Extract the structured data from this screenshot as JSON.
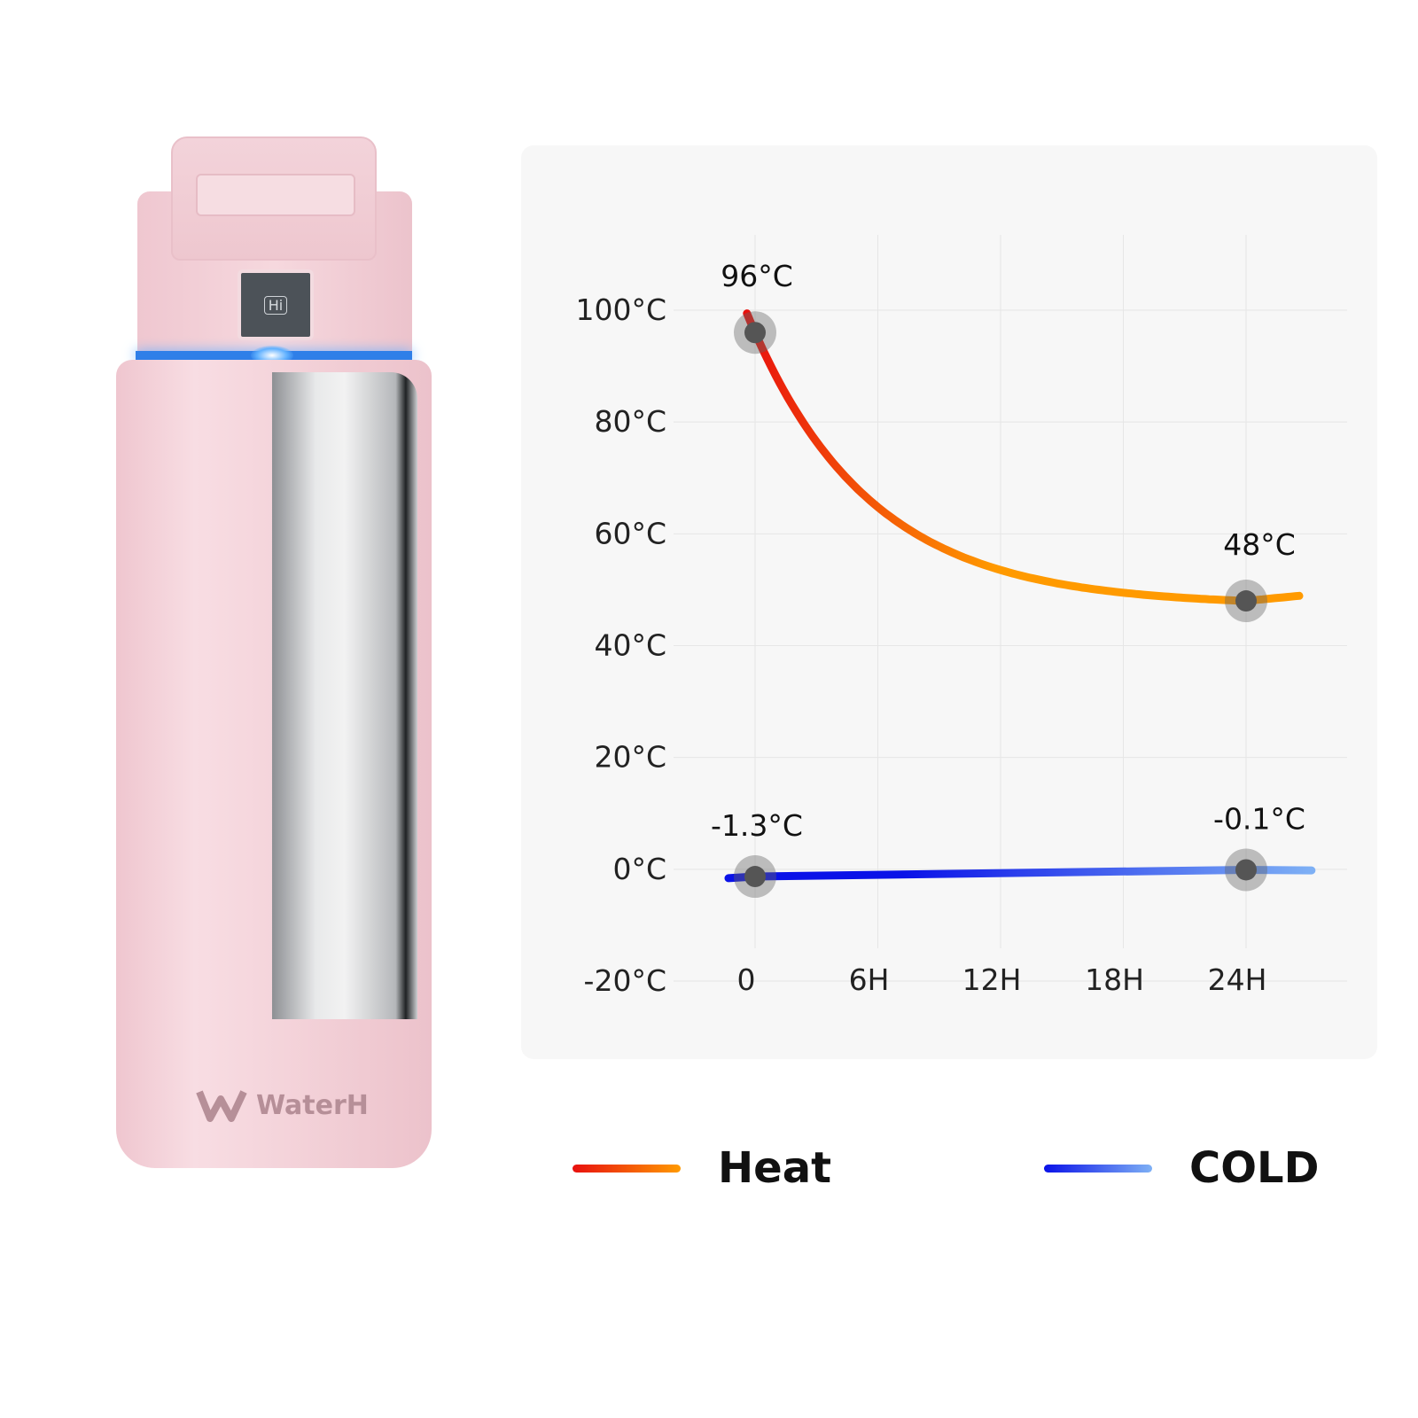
{
  "product": {
    "brand": "WaterH",
    "screen_text": "Hi"
  },
  "chart_data": {
    "type": "line",
    "title": "",
    "xlabel": "",
    "ylabel": "",
    "x_ticks": [
      "0",
      "6H",
      "12H",
      "18H",
      "24H"
    ],
    "x_tick_values": [
      0,
      6,
      12,
      18,
      24
    ],
    "y_ticks": [
      "100°C",
      "80°C",
      "60°C",
      "40°C",
      "20°C",
      "0°C",
      "-20°C"
    ],
    "y_tick_values": [
      100,
      80,
      60,
      40,
      20,
      0,
      -20
    ],
    "ylim": [
      -20,
      100
    ],
    "xlim": [
      0,
      24
    ],
    "grid": true,
    "legend_position": "bottom",
    "series": [
      {
        "name": "Heat",
        "colors": [
          "#e8100e",
          "#ff9a00"
        ],
        "points": [
          {
            "x": 0,
            "y": 96,
            "label": "96°C"
          },
          {
            "x": 24,
            "y": 48,
            "label": "48°C"
          }
        ]
      },
      {
        "name": "COLD",
        "colors": [
          "#0a12e8",
          "#7eb0f5"
        ],
        "points": [
          {
            "x": 0,
            "y": -1.3,
            "label": "-1.3°C"
          },
          {
            "x": 24,
            "y": -0.1,
            "label": "-0.1°C"
          }
        ]
      }
    ]
  }
}
